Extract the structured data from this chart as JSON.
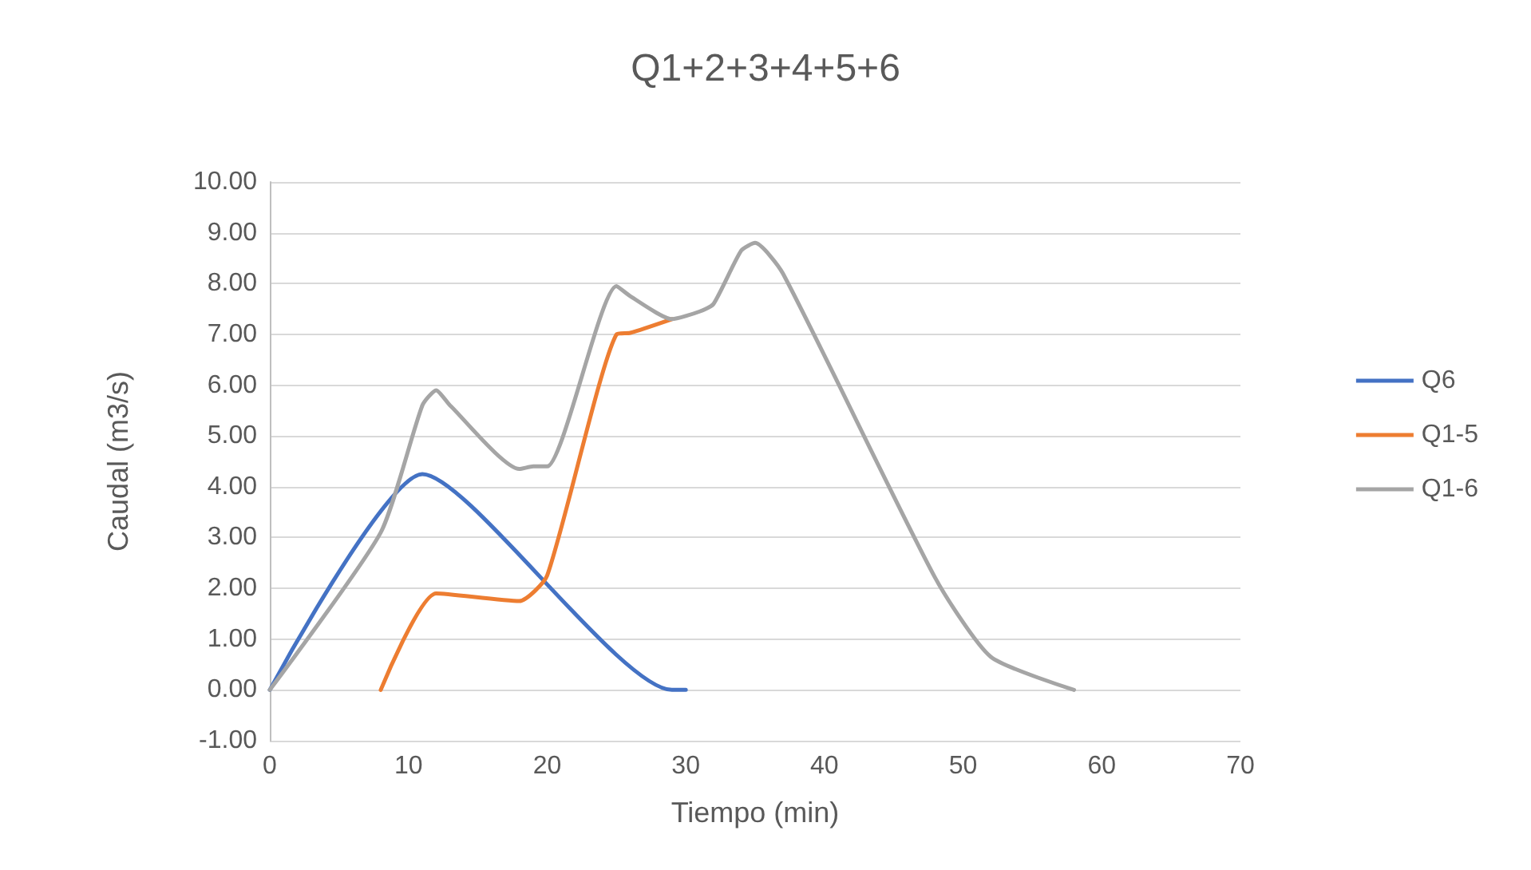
{
  "chart_data": {
    "type": "line",
    "title": "Q1+2+3+4+5+6",
    "xlabel": "Tiempo (min)",
    "ylabel": "Caudal (m3/s)",
    "xlim": [
      0,
      70
    ],
    "xticks": [
      0,
      10,
      20,
      30,
      40,
      50,
      60,
      70
    ],
    "ylim": [
      -1,
      10
    ],
    "yticks": [
      {
        "value": -1,
        "label": "-1.00"
      },
      {
        "value": 0,
        "label": "0.00"
      },
      {
        "value": 1,
        "label": "1.00"
      },
      {
        "value": 2,
        "label": "2.00"
      },
      {
        "value": 3,
        "label": "3.00"
      },
      {
        "value": 4,
        "label": "4.00"
      },
      {
        "value": 5,
        "label": "5.00"
      },
      {
        "value": 6,
        "label": "6.00"
      },
      {
        "value": 7,
        "label": "7.00"
      },
      {
        "value": 8,
        "label": "8.00"
      },
      {
        "value": 9,
        "label": "9.00"
      },
      {
        "value": 10,
        "label": "10.00"
      }
    ],
    "grid": "y",
    "legend": "right",
    "marker": "none",
    "line_style": "solid",
    "series": [
      {
        "name": "Q6",
        "color": "#4472c4",
        "x": [
          0,
          11,
          29,
          30
        ],
        "values": [
          0,
          4.25,
          0,
          0
        ]
      },
      {
        "name": "Q1-5",
        "color": "#ed7d31",
        "x": [
          8,
          12,
          18,
          20,
          25,
          26,
          29
        ],
        "values": [
          0,
          1.9,
          1.75,
          2.25,
          7.0,
          7.03,
          7.3
        ]
      },
      {
        "name": "Q1-6",
        "color": "#a5a5a5",
        "x": [
          0,
          8,
          11,
          12,
          13,
          18,
          19,
          20,
          25,
          26,
          29,
          31,
          32,
          34,
          35,
          37,
          48,
          52,
          58
        ],
        "values": [
          0,
          3.1,
          5.6,
          5.9,
          5.6,
          4.35,
          4.4,
          4.4,
          7.95,
          7.75,
          7.3,
          7.45,
          7.6,
          8.65,
          8.8,
          8.2,
          2.2,
          0.65,
          0
        ]
      }
    ]
  }
}
